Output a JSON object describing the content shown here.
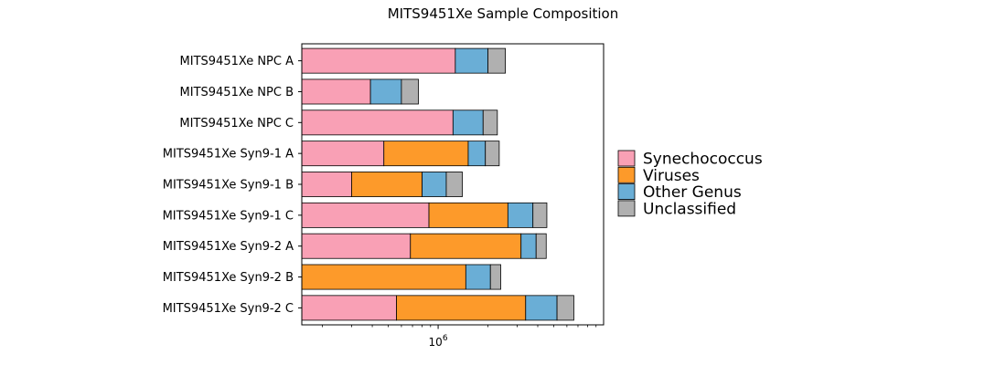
{
  "chart_data": {
    "type": "bar",
    "orientation": "horizontal",
    "stacked": true,
    "title": "MITS9451Xe Sample Composition",
    "xlabel": "",
    "ylabel": "",
    "x_scale": "log",
    "xlim": [
      150000,
      10000000
    ],
    "x_ticks": [
      {
        "value": 1000000,
        "base": "10",
        "exp": "6"
      }
    ],
    "legend_position": "right",
    "categories": [
      "MITS9451Xe NPC A",
      "MITS9451Xe NPC B",
      "MITS9451Xe NPC C",
      "MITS9451Xe Syn9-1 A",
      "MITS9451Xe Syn9-1 B",
      "MITS9451Xe Syn9-1 C",
      "MITS9451Xe Syn9-2 A",
      "MITS9451Xe Syn9-2 B",
      "MITS9451Xe Syn9-2 C"
    ],
    "series": [
      {
        "name": "Synechococcus",
        "color": "#f9a0b5",
        "values": [
          1270000,
          390000,
          1230000,
          470000,
          300000,
          880000,
          680000,
          0,
          560000
        ]
      },
      {
        "name": "Viruses",
        "color": "#fd9a2a",
        "values": [
          0,
          0,
          0,
          1050000,
          500000,
          1760000,
          2490000,
          1470000,
          2820000
        ]
      },
      {
        "name": "Other Genus",
        "color": "#6aaed6",
        "values": [
          730000,
          210000,
          640000,
          410000,
          320000,
          1100000,
          740000,
          600000,
          1850000
        ]
      },
      {
        "name": "Unclassified",
        "color": "#b0b0b0",
        "values": [
          550000,
          160000,
          410000,
          410000,
          280000,
          800000,
          590000,
          320000,
          1380000
        ]
      }
    ]
  }
}
